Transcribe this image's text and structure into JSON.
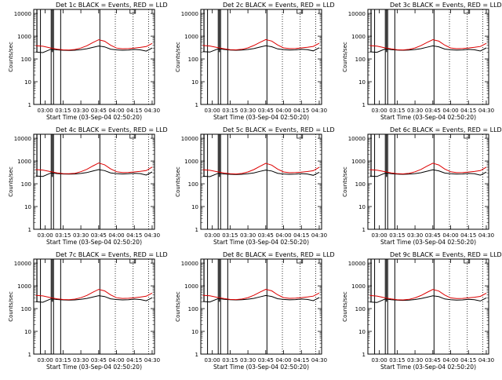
{
  "colors": {
    "events": "#000000",
    "lld": "#dd0000",
    "axes": "#000000",
    "background": "#ffffff"
  },
  "shared": {
    "title_suffix": "BLACK = Events, RED = LLD",
    "xlabel": "Start Time (03-Sep-04 02:50:20)",
    "ylabel": "Counts/sec",
    "x_ticks": [
      "03:00",
      "03:15",
      "03:30",
      "03:45",
      "04:00",
      "04:15",
      "04:30"
    ],
    "y_ticks": [
      "1",
      "10",
      "100",
      "1000",
      "10000"
    ]
  },
  "chart_data": [
    {
      "type": "line",
      "title": "Det 1c BLACK = Events, RED = LLD",
      "detector": "Det 1c",
      "xlabel": "Start Time (03-Sep-04 02:50:20)",
      "ylabel": "Counts/sec",
      "x_scale": "time",
      "y_scale": "log",
      "ylim": [
        1,
        15000
      ],
      "xlim": [
        "02:50:20",
        "04:32:00"
      ],
      "x": [
        "02:52",
        "02:58",
        "03:05",
        "03:10",
        "03:15",
        "03:20",
        "03:25",
        "03:30",
        "03:35",
        "03:40",
        "03:45",
        "03:50",
        "03:55",
        "04:00",
        "04:05",
        "04:10",
        "04:15",
        "04:20",
        "04:25",
        "04:30"
      ],
      "series": [
        {
          "name": "Events",
          "color": "#000000",
          "values": [
            200,
            190,
            270,
            250,
            240,
            235,
            240,
            255,
            280,
            320,
            370,
            340,
            270,
            250,
            240,
            245,
            260,
            250,
            220,
            300
          ]
        },
        {
          "name": "LLD",
          "color": "#dd0000",
          "values": [
            380,
            360,
            300,
            270,
            250,
            245,
            260,
            300,
            380,
            520,
            700,
            600,
            400,
            300,
            280,
            285,
            300,
            320,
            350,
            480
          ]
        }
      ],
      "markers": {
        "solid": [
          "02:56",
          "03:05",
          "03:07",
          "03:13",
          "03:46"
        ],
        "dotted": [
          "03:59",
          "04:14",
          "04:27"
        ],
        "saturated": [
          "02:53",
          "03:06"
        ]
      }
    },
    {
      "type": "line",
      "title": "Det 2c BLACK = Events, RED = LLD",
      "detector": "Det 2c",
      "xlabel": "Start Time (03-Sep-04 02:50:20)",
      "ylabel": "Counts/sec",
      "x_scale": "time",
      "y_scale": "log",
      "ylim": [
        1,
        15000
      ],
      "xlim": [
        "02:50:20",
        "04:32:00"
      ],
      "x": [
        "02:52",
        "02:58",
        "03:05",
        "03:10",
        "03:15",
        "03:20",
        "03:25",
        "03:30",
        "03:35",
        "03:40",
        "03:45",
        "03:50",
        "03:55",
        "04:00",
        "04:05",
        "04:10",
        "04:15",
        "04:20",
        "04:25",
        "04:30"
      ],
      "series": [
        {
          "name": "Events",
          "color": "#000000",
          "values": [
            210,
            200,
            280,
            260,
            245,
            240,
            245,
            260,
            285,
            330,
            380,
            345,
            275,
            255,
            245,
            250,
            265,
            255,
            225,
            310
          ]
        },
        {
          "name": "LLD",
          "color": "#dd0000",
          "values": [
            390,
            370,
            310,
            280,
            255,
            250,
            265,
            305,
            390,
            530,
            710,
            610,
            410,
            305,
            285,
            290,
            305,
            325,
            355,
            490
          ]
        }
      ],
      "markers": {
        "solid": [
          "02:56",
          "03:05",
          "03:07",
          "03:13",
          "03:46"
        ],
        "dotted": [
          "03:59",
          "04:14",
          "04:27"
        ],
        "saturated": [
          "02:53",
          "03:06"
        ]
      }
    },
    {
      "type": "line",
      "title": "Det 3c BLACK = Events, RED = LLD",
      "detector": "Det 3c",
      "xlabel": "Start Time (03-Sep-04 02:50:20)",
      "ylabel": "Counts/sec",
      "x_scale": "time",
      "y_scale": "log",
      "ylim": [
        1,
        15000
      ],
      "xlim": [
        "02:50:20",
        "04:32:00"
      ],
      "x": [
        "02:52",
        "02:58",
        "03:05",
        "03:10",
        "03:15",
        "03:20",
        "03:25",
        "03:30",
        "03:35",
        "03:40",
        "03:45",
        "03:50",
        "03:55",
        "04:00",
        "04:05",
        "04:10",
        "04:15",
        "04:20",
        "04:25",
        "04:30"
      ],
      "series": [
        {
          "name": "Events",
          "color": "#000000",
          "values": [
            205,
            195,
            275,
            255,
            245,
            240,
            245,
            258,
            282,
            325,
            375,
            342,
            272,
            252,
            242,
            248,
            262,
            252,
            222,
            305
          ]
        },
        {
          "name": "LLD",
          "color": "#dd0000",
          "values": [
            385,
            365,
            305,
            275,
            252,
            248,
            262,
            302,
            385,
            525,
            705,
            605,
            405,
            302,
            282,
            288,
            302,
            322,
            352,
            485
          ]
        }
      ],
      "markers": {
        "solid": [
          "02:56",
          "03:05",
          "03:07",
          "03:13",
          "03:46"
        ],
        "dotted": [
          "03:59",
          "04:14",
          "04:27"
        ],
        "saturated": [
          "02:53",
          "03:06"
        ]
      }
    },
    {
      "type": "line",
      "title": "Det 4c BLACK = Events, RED = LLD",
      "detector": "Det 4c",
      "xlabel": "Start Time (03-Sep-04 02:50:20)",
      "ylabel": "Counts/sec",
      "x_scale": "time",
      "y_scale": "log",
      "ylim": [
        1,
        15000
      ],
      "xlim": [
        "02:50:20",
        "04:32:00"
      ],
      "x": [
        "02:52",
        "02:58",
        "03:05",
        "03:10",
        "03:15",
        "03:20",
        "03:25",
        "03:30",
        "03:35",
        "03:40",
        "03:45",
        "03:50",
        "03:55",
        "04:00",
        "04:05",
        "04:10",
        "04:15",
        "04:20",
        "04:25",
        "04:30"
      ],
      "series": [
        {
          "name": "Events",
          "color": "#000000",
          "values": [
            220,
            210,
            300,
            280,
            270,
            265,
            270,
            285,
            310,
            360,
            420,
            380,
            300,
            280,
            270,
            275,
            290,
            280,
            240,
            330
          ]
        },
        {
          "name": "LLD",
          "color": "#dd0000",
          "values": [
            420,
            400,
            340,
            300,
            280,
            275,
            290,
            340,
            430,
            600,
            820,
            680,
            450,
            340,
            310,
            315,
            330,
            350,
            380,
            540
          ]
        }
      ],
      "markers": {
        "solid": [
          "02:56",
          "03:05",
          "03:07",
          "03:13",
          "03:46"
        ],
        "dotted": [
          "03:59",
          "04:14",
          "04:27"
        ],
        "saturated": [
          "02:53",
          "03:06"
        ]
      }
    },
    {
      "type": "line",
      "title": "Det 5c BLACK = Events, RED = LLD",
      "detector": "Det 5c",
      "xlabel": "Start Time (03-Sep-04 02:50:20)",
      "ylabel": "Counts/sec",
      "x_scale": "time",
      "y_scale": "log",
      "ylim": [
        1,
        15000
      ],
      "xlim": [
        "02:50:20",
        "04:32:00"
      ],
      "x": [
        "02:52",
        "02:58",
        "03:05",
        "03:10",
        "03:15",
        "03:20",
        "03:25",
        "03:30",
        "03:35",
        "03:40",
        "03:45",
        "03:50",
        "03:55",
        "04:00",
        "04:05",
        "04:10",
        "04:15",
        "04:20",
        "04:25",
        "04:30"
      ],
      "series": [
        {
          "name": "Events",
          "color": "#000000",
          "values": [
            215,
            205,
            290,
            270,
            260,
            255,
            260,
            275,
            300,
            350,
            400,
            365,
            290,
            270,
            260,
            265,
            280,
            270,
            235,
            320
          ]
        },
        {
          "name": "LLD",
          "color": "#dd0000",
          "values": [
            410,
            390,
            330,
            295,
            275,
            270,
            285,
            330,
            420,
            580,
            790,
            660,
            440,
            330,
            305,
            310,
            325,
            345,
            375,
            530
          ]
        }
      ],
      "markers": {
        "solid": [
          "02:56",
          "03:05",
          "03:07",
          "03:13",
          "03:46"
        ],
        "dotted": [
          "03:59",
          "04:14",
          "04:27"
        ],
        "saturated": [
          "02:53",
          "03:06"
        ]
      }
    },
    {
      "type": "line",
      "title": "Det 6c BLACK = Events, RED = LLD",
      "detector": "Det 6c",
      "xlabel": "Start Time (03-Sep-04 02:50:20)",
      "ylabel": "Counts/sec",
      "x_scale": "time",
      "y_scale": "log",
      "ylim": [
        1,
        15000
      ],
      "xlim": [
        "02:50:20",
        "04:32:00"
      ],
      "x": [
        "02:52",
        "02:58",
        "03:05",
        "03:10",
        "03:15",
        "03:20",
        "03:25",
        "03:30",
        "03:35",
        "03:40",
        "03:45",
        "03:50",
        "03:55",
        "04:00",
        "04:05",
        "04:10",
        "04:15",
        "04:20",
        "04:25",
        "04:30"
      ],
      "series": [
        {
          "name": "Events",
          "color": "#000000",
          "values": [
            218,
            208,
            295,
            275,
            265,
            260,
            265,
            280,
            305,
            355,
            410,
            370,
            295,
            275,
            265,
            270,
            285,
            275,
            238,
            325
          ]
        },
        {
          "name": "LLD",
          "color": "#dd0000",
          "values": [
            415,
            395,
            335,
            298,
            278,
            272,
            288,
            335,
            425,
            590,
            800,
            670,
            445,
            335,
            308,
            312,
            328,
            348,
            378,
            535
          ]
        }
      ],
      "markers": {
        "solid": [
          "02:56",
          "03:05",
          "03:07",
          "03:13",
          "03:46"
        ],
        "dotted": [
          "03:59",
          "04:14",
          "04:27"
        ],
        "saturated": [
          "02:53",
          "03:06"
        ]
      }
    },
    {
      "type": "line",
      "title": "Det 7c BLACK = Events, RED = LLD",
      "detector": "Det 7c",
      "xlabel": "Start Time (03-Sep-04 02:50:20)",
      "ylabel": "Counts/sec",
      "x_scale": "time",
      "y_scale": "log",
      "ylim": [
        1,
        15000
      ],
      "xlim": [
        "02:50:20",
        "04:32:00"
      ],
      "x": [
        "02:52",
        "02:58",
        "03:05",
        "03:10",
        "03:15",
        "03:20",
        "03:25",
        "03:30",
        "03:35",
        "03:40",
        "03:45",
        "03:50",
        "03:55",
        "04:00",
        "04:05",
        "04:10",
        "04:15",
        "04:20",
        "04:25",
        "04:30"
      ],
      "series": [
        {
          "name": "Events",
          "color": "#000000",
          "values": [
            200,
            190,
            270,
            250,
            240,
            235,
            240,
            255,
            280,
            320,
            370,
            340,
            270,
            250,
            240,
            245,
            260,
            250,
            220,
            300
          ]
        },
        {
          "name": "LLD",
          "color": "#dd0000",
          "values": [
            380,
            360,
            300,
            270,
            250,
            245,
            260,
            300,
            380,
            520,
            700,
            600,
            400,
            300,
            280,
            285,
            300,
            320,
            350,
            480
          ]
        }
      ],
      "markers": {
        "solid": [
          "02:56",
          "03:05",
          "03:07",
          "03:13",
          "03:46"
        ],
        "dotted": [
          "03:59",
          "04:14",
          "04:27"
        ],
        "saturated": [
          "02:53",
          "03:06"
        ]
      }
    },
    {
      "type": "line",
      "title": "Det 8c BLACK = Events, RED = LLD",
      "detector": "Det 8c",
      "xlabel": "Start Time (03-Sep-04 02:50:20)",
      "ylabel": "Counts/sec",
      "x_scale": "time",
      "y_scale": "log",
      "ylim": [
        1,
        15000
      ],
      "xlim": [
        "02:50:20",
        "04:32:00"
      ],
      "x": [
        "02:52",
        "02:58",
        "03:05",
        "03:10",
        "03:15",
        "03:20",
        "03:25",
        "03:30",
        "03:35",
        "03:40",
        "03:45",
        "03:50",
        "03:55",
        "04:00",
        "04:05",
        "04:10",
        "04:15",
        "04:20",
        "04:25",
        "04:30"
      ],
      "series": [
        {
          "name": "Events",
          "color": "#000000",
          "values": [
            205,
            195,
            275,
            255,
            245,
            240,
            245,
            258,
            282,
            325,
            375,
            342,
            272,
            252,
            242,
            248,
            262,
            252,
            222,
            305
          ]
        },
        {
          "name": "LLD",
          "color": "#dd0000",
          "values": [
            385,
            365,
            305,
            275,
            252,
            248,
            262,
            302,
            385,
            525,
            705,
            605,
            405,
            302,
            282,
            288,
            302,
            322,
            352,
            485
          ]
        }
      ],
      "markers": {
        "solid": [
          "02:56",
          "03:05",
          "03:07",
          "03:13",
          "03:46"
        ],
        "dotted": [
          "03:59",
          "04:14",
          "04:27"
        ],
        "saturated": [
          "02:53",
          "03:06"
        ]
      }
    },
    {
      "type": "line",
      "title": "Det 9c BLACK = Events, RED = LLD",
      "detector": "Det 9c",
      "xlabel": "Start Time (03-Sep-04 02:50:20)",
      "ylabel": "Counts/sec",
      "x_scale": "time",
      "y_scale": "log",
      "ylim": [
        1,
        15000
      ],
      "xlim": [
        "02:50:20",
        "04:32:00"
      ],
      "x": [
        "02:52",
        "02:58",
        "03:05",
        "03:10",
        "03:15",
        "03:20",
        "03:25",
        "03:30",
        "03:35",
        "03:40",
        "03:45",
        "03:50",
        "03:55",
        "04:00",
        "04:05",
        "04:10",
        "04:15",
        "04:20",
        "04:25",
        "04:30"
      ],
      "series": [
        {
          "name": "Events",
          "color": "#000000",
          "values": [
            195,
            185,
            265,
            245,
            235,
            230,
            235,
            250,
            275,
            315,
            365,
            335,
            265,
            245,
            235,
            240,
            255,
            245,
            215,
            295
          ]
        },
        {
          "name": "LLD",
          "color": "#dd0000",
          "values": [
            375,
            355,
            295,
            265,
            245,
            240,
            255,
            295,
            375,
            510,
            690,
            590,
            395,
            295,
            275,
            280,
            295,
            315,
            345,
            475
          ]
        }
      ],
      "markers": {
        "solid": [
          "02:56",
          "03:05",
          "03:07",
          "03:13",
          "03:46"
        ],
        "dotted": [
          "03:59",
          "04:14",
          "04:27"
        ],
        "saturated": [
          "02:53",
          "03:06"
        ]
      }
    }
  ]
}
